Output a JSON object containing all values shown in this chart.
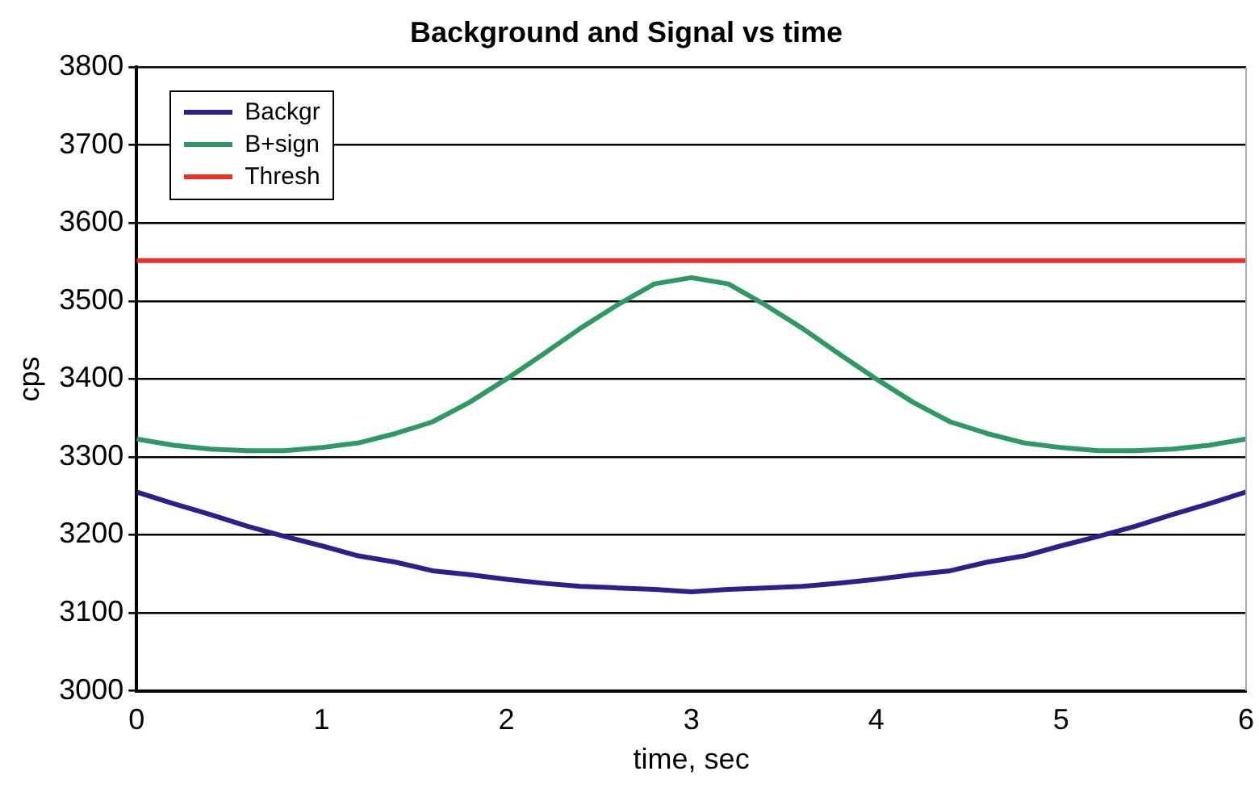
{
  "chart_data": {
    "type": "line",
    "title": "Background and Signal vs time",
    "xlabel": "time, sec",
    "ylabel": "cps",
    "x": [
      0,
      0.2,
      0.4,
      0.6,
      0.8,
      1,
      1.2,
      1.4,
      1.6,
      1.8,
      2,
      2.2,
      2.4,
      2.6,
      2.8,
      3,
      3.2,
      3.4,
      3.6,
      3.8,
      4,
      4.2,
      4.4,
      4.6,
      4.8,
      5,
      5.2,
      5.4,
      5.6,
      5.8,
      6
    ],
    "series": [
      {
        "name": "Backgr",
        "color": "#2e1f8a",
        "values": [
          3255,
          3240,
          3226,
          3211,
          3198,
          3186,
          3173,
          3165,
          3154,
          3149,
          3143,
          3138,
          3134,
          3132,
          3130,
          3127,
          3130,
          3132,
          3134,
          3138,
          3143,
          3149,
          3154,
          3165,
          3173,
          3186,
          3198,
          3211,
          3226,
          3240,
          3255
        ]
      },
      {
        "name": "B+sign",
        "color": "#2e9a62",
        "values": [
          3323,
          3315,
          3310,
          3308,
          3308,
          3312,
          3318,
          3330,
          3345,
          3370,
          3400,
          3432,
          3465,
          3495,
          3522,
          3530,
          3522,
          3495,
          3465,
          3432,
          3400,
          3370,
          3345,
          3330,
          3318,
          3312,
          3308,
          3308,
          3310,
          3315,
          3323
        ]
      },
      {
        "name": "Thresh",
        "color": "#e8312a",
        "values": [
          3552,
          3552,
          3552,
          3552,
          3552,
          3552,
          3552,
          3552,
          3552,
          3552,
          3552,
          3552,
          3552,
          3552,
          3552,
          3552,
          3552,
          3552,
          3552,
          3552,
          3552,
          3552,
          3552,
          3552,
          3552,
          3552,
          3552,
          3552,
          3552,
          3552,
          3552
        ]
      }
    ],
    "xlim": [
      0,
      6
    ],
    "xticks": [
      0,
      1,
      2,
      3,
      4,
      5,
      6
    ],
    "ylim": [
      3000,
      3800
    ],
    "yticks": [
      3000,
      3100,
      3200,
      3300,
      3400,
      3500,
      3600,
      3700,
      3800
    ],
    "grid": "y",
    "legend": "top left",
    "marker": "none",
    "line_style": "solid"
  }
}
